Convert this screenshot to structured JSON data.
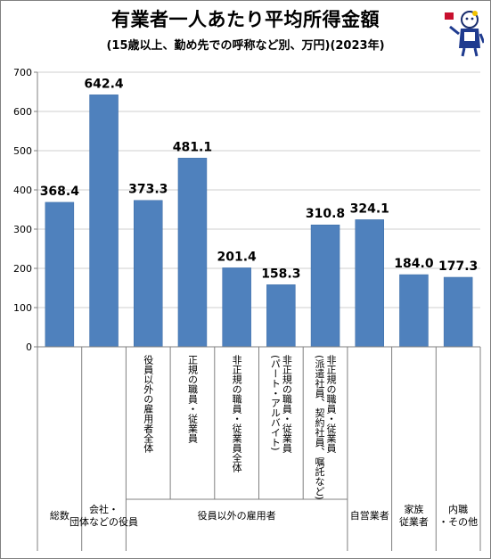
{
  "title": "有業者一人あたり平均所得金額",
  "subtitle": "(15歳以上、勤め先での呼称など別、万円)(2023年)",
  "colors": {
    "bar": "#4f81bd",
    "bar_edge": "#3a6aa5",
    "grid": "#cfcfcf",
    "axis": "#808080"
  },
  "mascot": "mascot-icon",
  "chart_data": {
    "type": "bar",
    "title": "有業者一人あたり平均所得金額",
    "subtitle": "(15歳以上、勤め先での呼称など別、万円)(2023年)",
    "ylim": [
      0,
      700
    ],
    "yticks": [
      0,
      100,
      200,
      300,
      400,
      500,
      600,
      700
    ],
    "grid": true,
    "values": [
      368.4,
      642.4,
      373.3,
      481.1,
      201.4,
      158.3,
      310.8,
      324.1,
      184.0,
      177.3
    ],
    "value_labels": [
      "368.4",
      "642.4",
      "373.3",
      "481.1",
      "201.4",
      "158.3",
      "310.8",
      "324.1",
      "184.0",
      "177.3"
    ],
    "subcategory_labels": [
      [],
      [],
      [
        "役員以外の雇用者全体"
      ],
      [
        "正規の職員・従業員"
      ],
      [
        "非正規の職員・従業員全体"
      ],
      [
        "非正規の職員・従業員",
        "(パート・アルバイト)"
      ],
      [
        "非正規の職員・従業員",
        "(派遣社員、契約社員、嘱託など)"
      ],
      [],
      [],
      []
    ],
    "groups": [
      {
        "label": [
          "総数"
        ],
        "span": [
          0,
          0
        ]
      },
      {
        "label": [
          "会社・",
          "団体などの役員"
        ],
        "span": [
          1,
          1
        ]
      },
      {
        "label": [
          "役員以外の雇用者"
        ],
        "span": [
          2,
          6
        ]
      },
      {
        "label": [
          "自営業者"
        ],
        "span": [
          7,
          7
        ]
      },
      {
        "label": [
          "家族",
          "従業者"
        ],
        "span": [
          8,
          8
        ]
      },
      {
        "label": [
          "内職",
          "・その他"
        ],
        "span": [
          9,
          9
        ]
      }
    ]
  }
}
